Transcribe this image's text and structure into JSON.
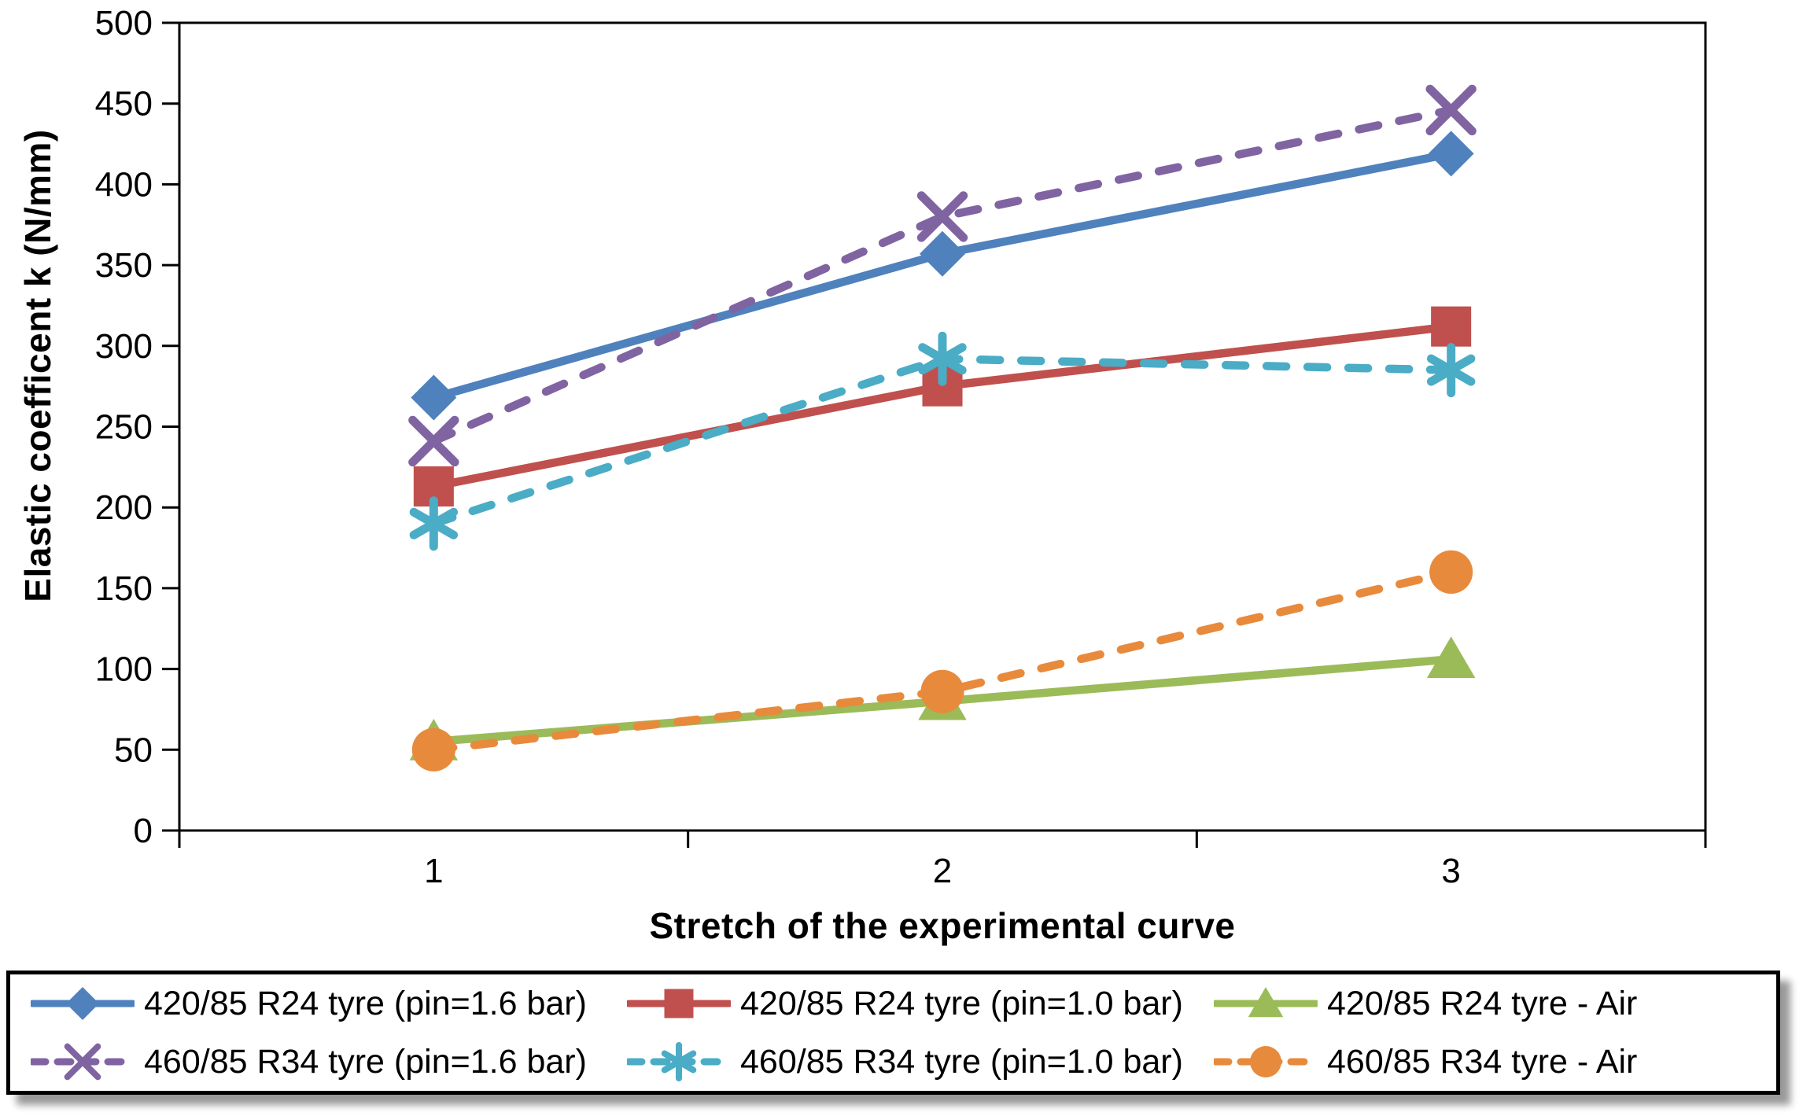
{
  "chart_data": {
    "type": "line",
    "title": "",
    "xlabel": "Stretch of the experimental curve",
    "ylabel": "Elastic coefficent k (N/mm)",
    "categories": [
      "1",
      "2",
      "3"
    ],
    "ylim": [
      0,
      500
    ],
    "y_tick_step": 50,
    "y_tick_labels": [
      "0",
      "50",
      "100",
      "150",
      "200",
      "250",
      "300",
      "350",
      "400",
      "450",
      "500"
    ],
    "grid": false,
    "legend_position": "bottom",
    "legend_rows": [
      [
        0,
        1,
        2
      ],
      [
        3,
        4,
        5
      ]
    ],
    "series": [
      {
        "name": "420/85 R24 tyre (pin=1.6 bar)",
        "color": "#4F81BD",
        "line_style": "solid",
        "marker": "diamond",
        "values": [
          268,
          357,
          419
        ]
      },
      {
        "name": "420/85 R24 tyre (pin=1.0 bar)",
        "color": "#C0504D",
        "line_style": "solid",
        "marker": "square",
        "values": [
          213,
          275,
          312
        ]
      },
      {
        "name": "420/85 R24 tyre - Air",
        "color": "#9BBB59",
        "line_style": "solid",
        "marker": "triangle",
        "values": [
          55,
          80,
          106
        ]
      },
      {
        "name": "460/85 R34 tyre (pin=1.6 bar)",
        "color": "#8064A2",
        "line_style": "dashed",
        "marker": "x",
        "values": [
          241,
          380,
          446
        ]
      },
      {
        "name": "460/85 R34 tyre (pin=1.0 bar)",
        "color": "#4BACC6",
        "line_style": "dashed",
        "marker": "asterisk",
        "values": [
          190,
          292,
          285
        ]
      },
      {
        "name": "460/85 R34 tyre - Air",
        "color": "#E88A3C",
        "line_style": "dashed",
        "marker": "circle",
        "values": [
          50,
          86,
          160
        ]
      }
    ],
    "axis_color": "#000000",
    "plot_background": "#ffffff"
  }
}
